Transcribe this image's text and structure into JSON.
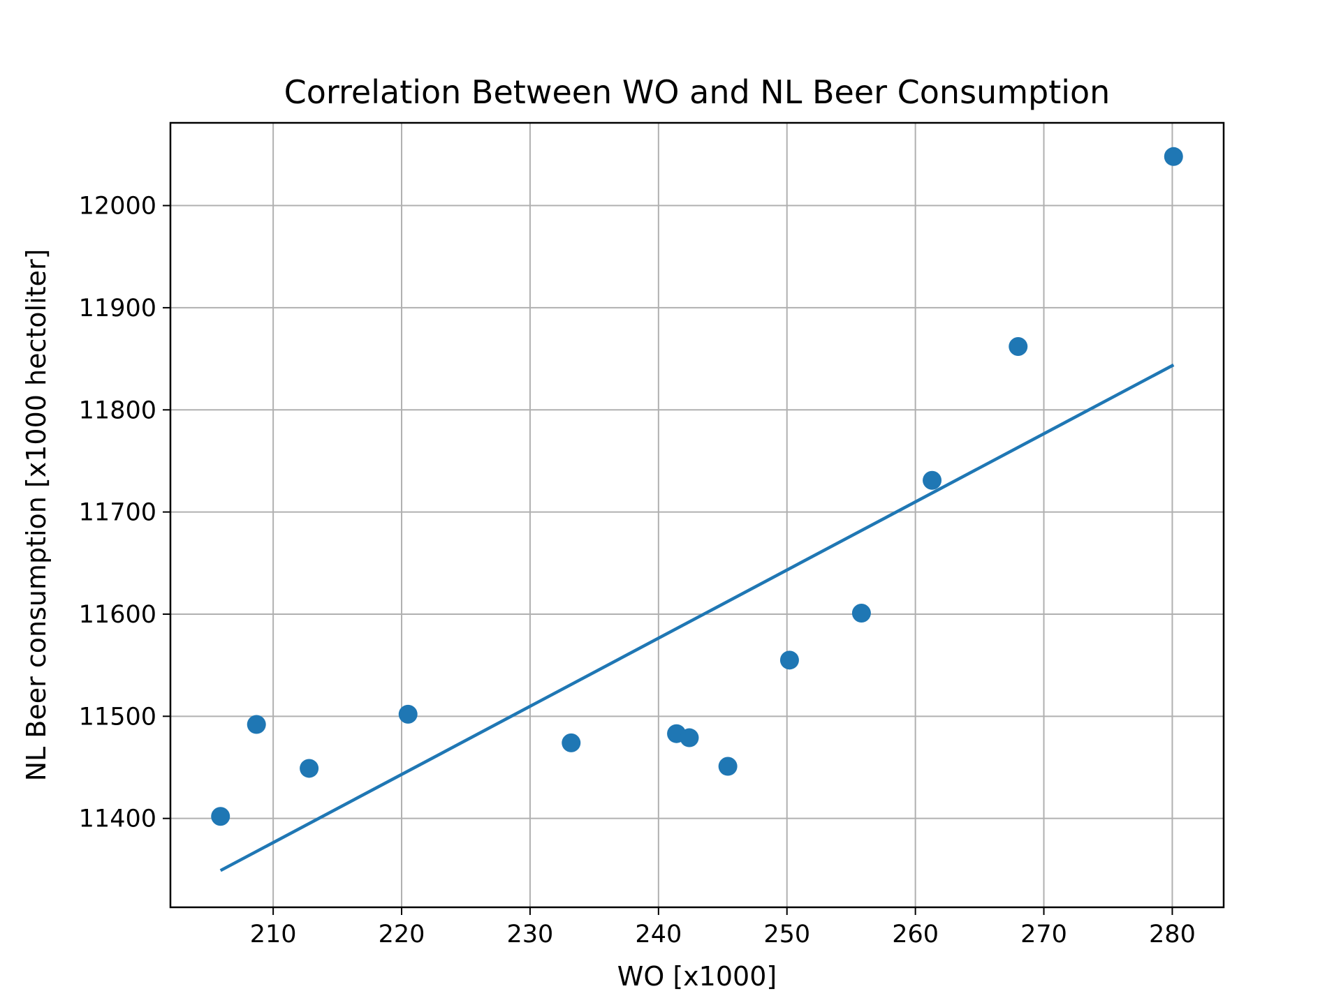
{
  "chart_data": {
    "type": "scatter",
    "title": "Correlation Between WO and NL Beer Consumption",
    "xlabel": "WO [x1000]",
    "ylabel": "NL Beer consumption [x1000 hectoliter]",
    "xlim": [
      202,
      284
    ],
    "ylim": [
      11313,
      12081
    ],
    "xticks": [
      210,
      220,
      230,
      240,
      250,
      260,
      270,
      280
    ],
    "yticks": [
      11400,
      11500,
      11600,
      11700,
      11800,
      11900,
      12000
    ],
    "grid": true,
    "colors": {
      "series": "#1f77b4",
      "grid": "#b0b0b0"
    },
    "series": [
      {
        "type": "scatter",
        "points": [
          [
            205.9,
            11402
          ],
          [
            208.7,
            11492
          ],
          [
            212.8,
            11449
          ],
          [
            220.5,
            11502
          ],
          [
            233.2,
            11474
          ],
          [
            241.4,
            11483
          ],
          [
            242.4,
            11479
          ],
          [
            245.4,
            11451
          ],
          [
            250.2,
            11555
          ],
          [
            255.8,
            11601
          ],
          [
            261.3,
            11731
          ],
          [
            268.0,
            11862
          ],
          [
            280.1,
            12048
          ]
        ]
      },
      {
        "type": "line",
        "points": [
          [
            205.9,
            11349
          ],
          [
            280.1,
            11844
          ]
        ]
      }
    ]
  }
}
